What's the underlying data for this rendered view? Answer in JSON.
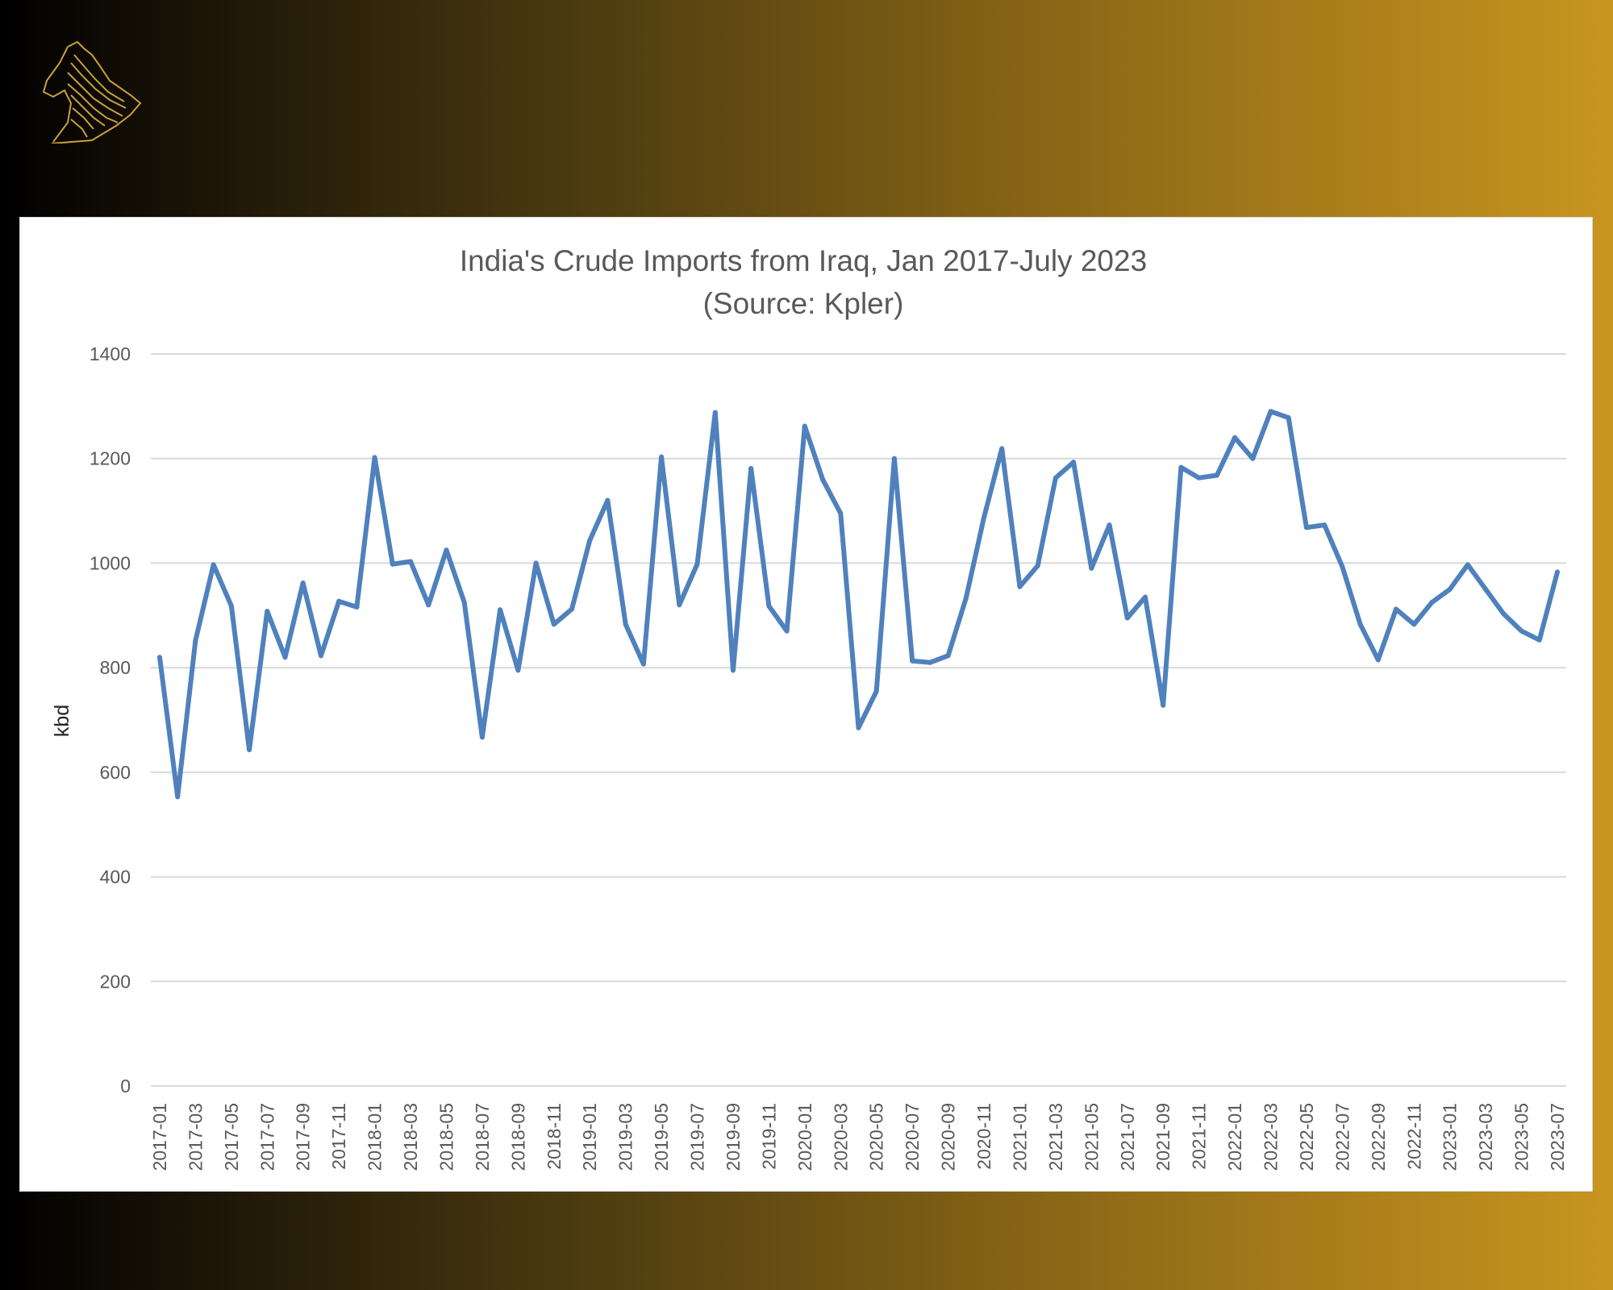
{
  "colors": {
    "line": "#4f81bd",
    "gridline": "#d9d9d9",
    "logo": "#c9a13a"
  },
  "logo_icon": "horse-head-icon",
  "chart_data": {
    "type": "line",
    "title": "India's Crude Imports from Iraq, Jan 2017-July 2023",
    "subtitle": "(Source: Kpler)",
    "xlabel": "",
    "ylabel": "kbd",
    "ylim": [
      0,
      1400
    ],
    "yticks": [
      "0",
      "200",
      "400",
      "600",
      "800",
      "1000",
      "1200",
      "1400"
    ],
    "grid": true,
    "legend": "none",
    "x": [
      "2017-01",
      "2017-02",
      "2017-03",
      "2017-04",
      "2017-05",
      "2017-06",
      "2017-07",
      "2017-08",
      "2017-09",
      "2017-10",
      "2017-11",
      "2017-12",
      "2018-01",
      "2018-02",
      "2018-03",
      "2018-04",
      "2018-05",
      "2018-06",
      "2018-07",
      "2018-08",
      "2018-09",
      "2018-10",
      "2018-11",
      "2018-12",
      "2019-01",
      "2019-02",
      "2019-03",
      "2019-04",
      "2019-05",
      "2019-06",
      "2019-07",
      "2019-08",
      "2019-09",
      "2019-10",
      "2019-11",
      "2019-12",
      "2020-01",
      "2020-02",
      "2020-03",
      "2020-04",
      "2020-05",
      "2020-06",
      "2020-07",
      "2020-08",
      "2020-09",
      "2020-10",
      "2020-11",
      "2020-12",
      "2021-01",
      "2021-02",
      "2021-03",
      "2021-04",
      "2021-05",
      "2021-06",
      "2021-07",
      "2021-08",
      "2021-09",
      "2021-10",
      "2021-11",
      "2021-12",
      "2022-01",
      "2022-02",
      "2022-03",
      "2022-04",
      "2022-05",
      "2022-06",
      "2022-07",
      "2022-08",
      "2022-09",
      "2022-10",
      "2022-11",
      "2022-12",
      "2023-01",
      "2023-02",
      "2023-03",
      "2023-04",
      "2023-05",
      "2023-06",
      "2023-07"
    ],
    "xtick_labels": [
      "2017-01",
      "2017-03",
      "2017-05",
      "2017-07",
      "2017-09",
      "2017-11",
      "2018-01",
      "2018-03",
      "2018-05",
      "2018-07",
      "2018-09",
      "2018-11",
      "2019-01",
      "2019-03",
      "2019-05",
      "2019-07",
      "2019-09",
      "2019-11",
      "2020-01",
      "2020-03",
      "2020-05",
      "2020-07",
      "2020-09",
      "2020-11",
      "2021-01",
      "2021-03",
      "2021-05",
      "2021-07",
      "2021-09",
      "2021-11",
      "2022-01",
      "2022-03",
      "2022-05",
      "2022-07",
      "2022-09",
      "2022-11",
      "2023-01",
      "2023-03",
      "2023-05",
      "2023-07"
    ],
    "series": [
      {
        "values": [
          820,
          553,
          852,
          997,
          918,
          643,
          908,
          820,
          962,
          823,
          927,
          916,
          1202,
          998,
          1003,
          920,
          1025,
          925,
          667,
          911,
          795,
          1000,
          883,
          912,
          1043,
          1120,
          883,
          807,
          1203,
          920,
          998,
          1288,
          795,
          1181,
          918,
          870,
          1262,
          1160,
          1095,
          685,
          755,
          1200,
          813,
          810,
          823,
          933,
          1087,
          1219,
          955,
          995,
          1163,
          1193,
          990,
          1073,
          895,
          935,
          728,
          1183,
          1163,
          1168,
          1240,
          1200,
          1290,
          1278,
          1068,
          1073,
          993,
          883,
          815,
          912,
          883,
          925,
          950,
          997,
          950,
          903,
          870,
          853,
          983
        ]
      }
    ]
  }
}
